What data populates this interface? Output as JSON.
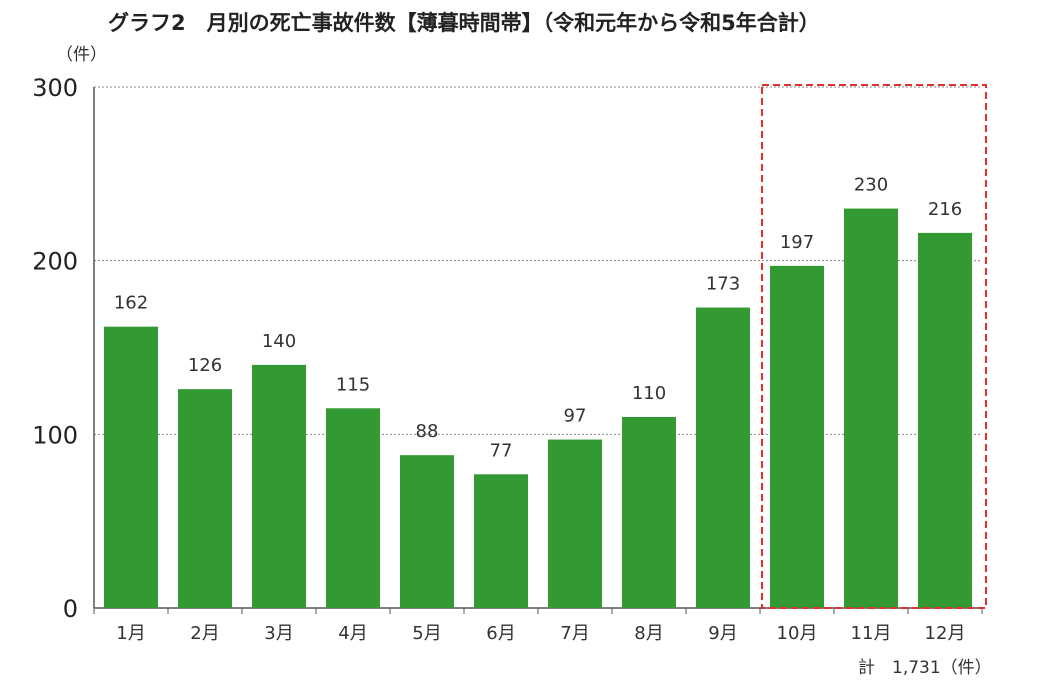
{
  "chart_data": {
    "type": "bar",
    "title": "グラフ2　月別の死亡事故件数【薄暮時間帯】（令和元年から令和5年合計）",
    "ylabel": "（件）",
    "ylim": [
      0,
      300
    ],
    "yticks": [
      0,
      100,
      200,
      300
    ],
    "grid": true,
    "categories": [
      "1月",
      "2月",
      "3月",
      "4月",
      "5月",
      "6月",
      "7月",
      "8月",
      "9月",
      "10月",
      "11月",
      "12月"
    ],
    "values": [
      162,
      126,
      140,
      115,
      88,
      77,
      97,
      110,
      173,
      197,
      230,
      216
    ],
    "bar_color": "#339933",
    "highlight": {
      "categories": [
        "10月",
        "11月",
        "12月"
      ],
      "color": "#e03030",
      "style": "dashed-box"
    },
    "total_note": "計　1,731（件）"
  }
}
